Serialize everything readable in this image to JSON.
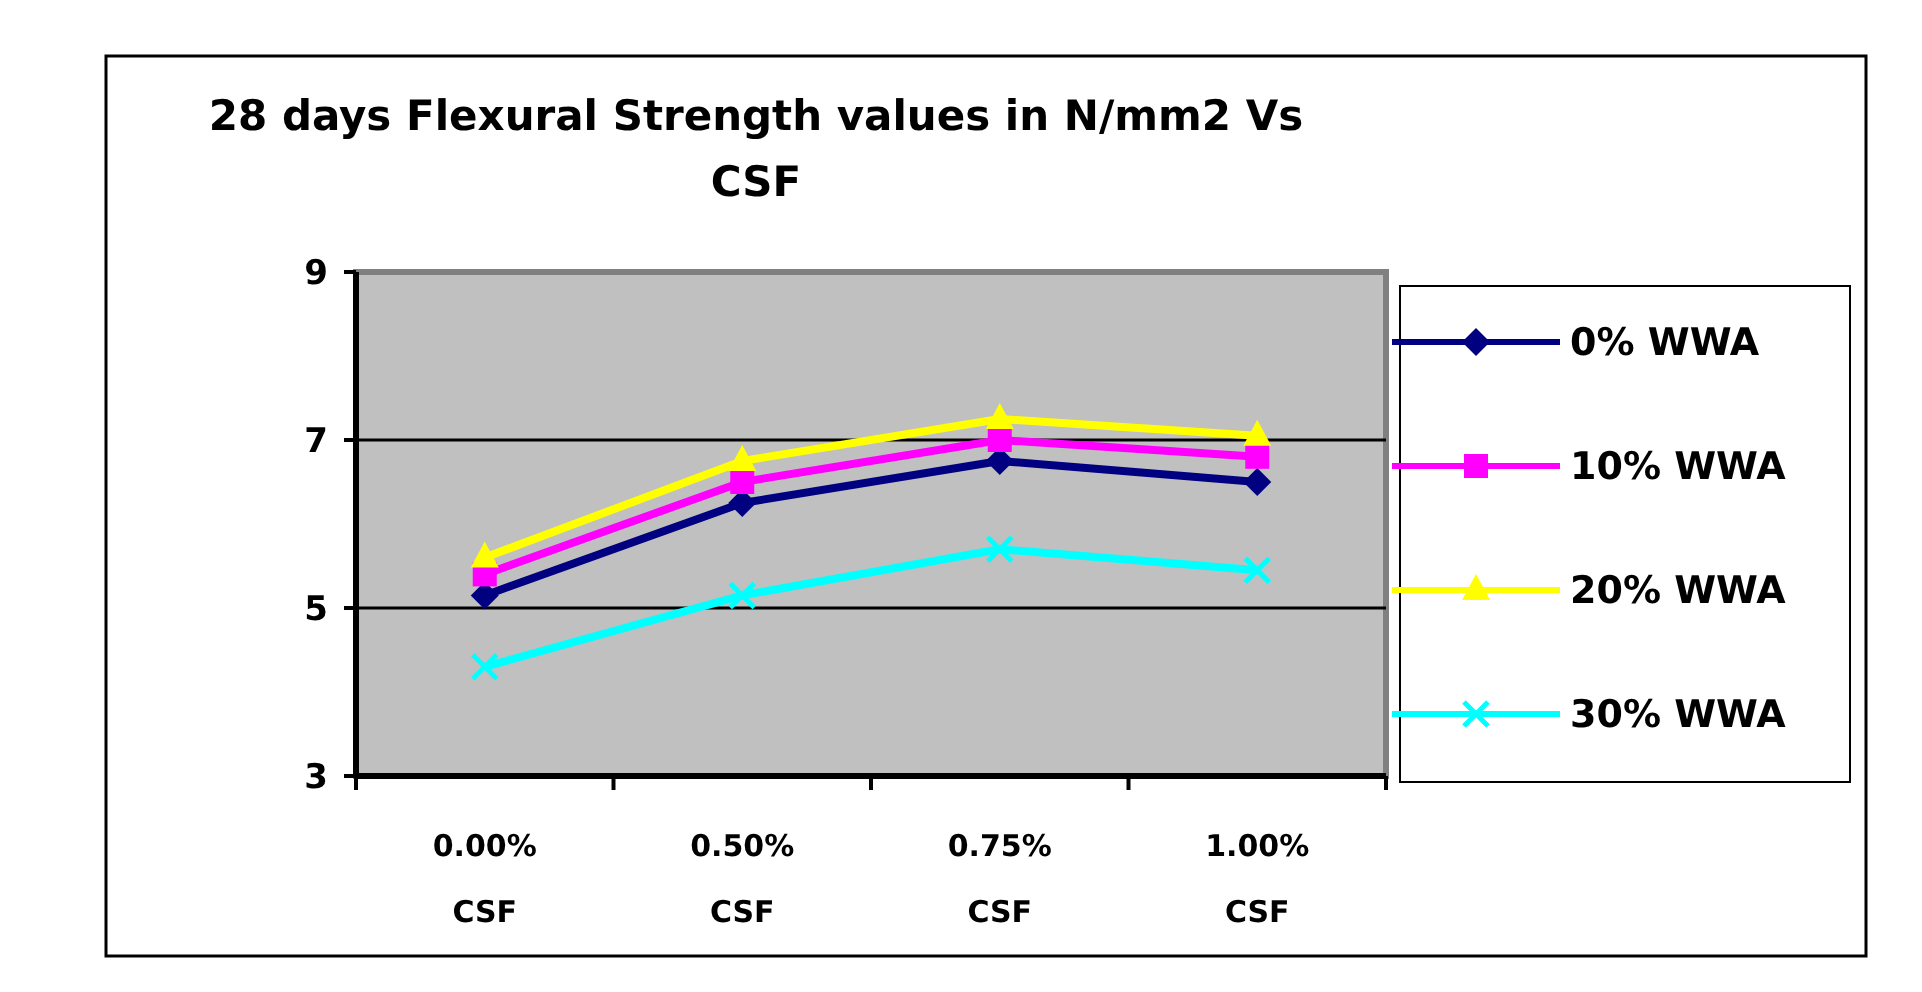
{
  "chart_data": {
    "type": "line",
    "title": "28 days Flexural Strength values in N/mm2 Vs CSF",
    "categories": [
      "0.00% CSF",
      "0.50% CSF",
      "0.75% CSF",
      "1.00% CSF"
    ],
    "series": [
      {
        "name": "0% WWA",
        "color": "#000080",
        "marker": "diamond",
        "values": [
          5.15,
          6.25,
          6.75,
          6.5
        ]
      },
      {
        "name": "10% WWA",
        "color": "#ff00ff",
        "marker": "square",
        "values": [
          5.4,
          6.5,
          7.0,
          6.8
        ]
      },
      {
        "name": "20% WWA",
        "color": "#ffff00",
        "marker": "triangle",
        "values": [
          5.6,
          6.75,
          7.25,
          7.05
        ]
      },
      {
        "name": "30% WWA",
        "color": "#00ffff",
        "marker": "cross",
        "values": [
          4.3,
          5.15,
          5.7,
          5.45
        ]
      }
    ],
    "ylim": [
      3,
      9
    ],
    "yticks": [
      3,
      5,
      7,
      9
    ],
    "grid": "y",
    "legend": "right"
  }
}
